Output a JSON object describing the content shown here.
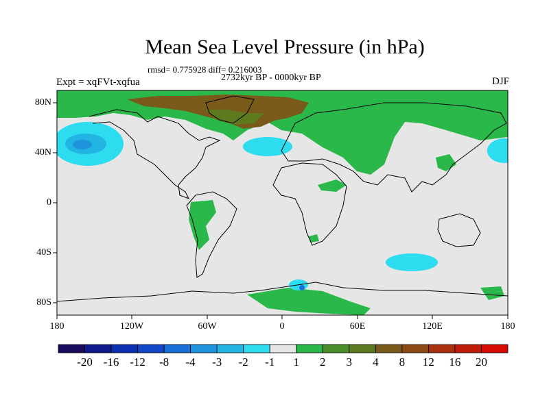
{
  "title": "Mean Sea Level Pressure (in hPa)",
  "stats": "rmsd= 0.775928 diff= 0.216003",
  "period": "2732kyr BP - 0000kyr BP",
  "experiment": "Expt = xqFVt-xqfua",
  "season": "DJF",
  "lat_labels": [
    "80N",
    "40N",
    "0",
    "40S",
    "80S"
  ],
  "lon_labels": [
    "180",
    "120W",
    "60W",
    "0",
    "60E",
    "120E",
    "180"
  ],
  "colorbar": {
    "labels": [
      "-20",
      "-16",
      "-12",
      "-8",
      "-4",
      "-3",
      "-2",
      "-1",
      "1",
      "2",
      "3",
      "4",
      "8",
      "12",
      "16",
      "20"
    ],
    "colors": [
      "#1a0a5e",
      "#0e1a8c",
      "#0b2fae",
      "#1247c8",
      "#1a6fd6",
      "#1f93dc",
      "#22b5e3",
      "#2edcef",
      "#e6e6e6",
      "#2ab84a",
      "#4b8f2a",
      "#5e7a1f",
      "#7a5a1a",
      "#8c4a14",
      "#a8300e",
      "#c01a08",
      "#d80a04"
    ]
  },
  "ocean_color": "#e6e6e6"
}
